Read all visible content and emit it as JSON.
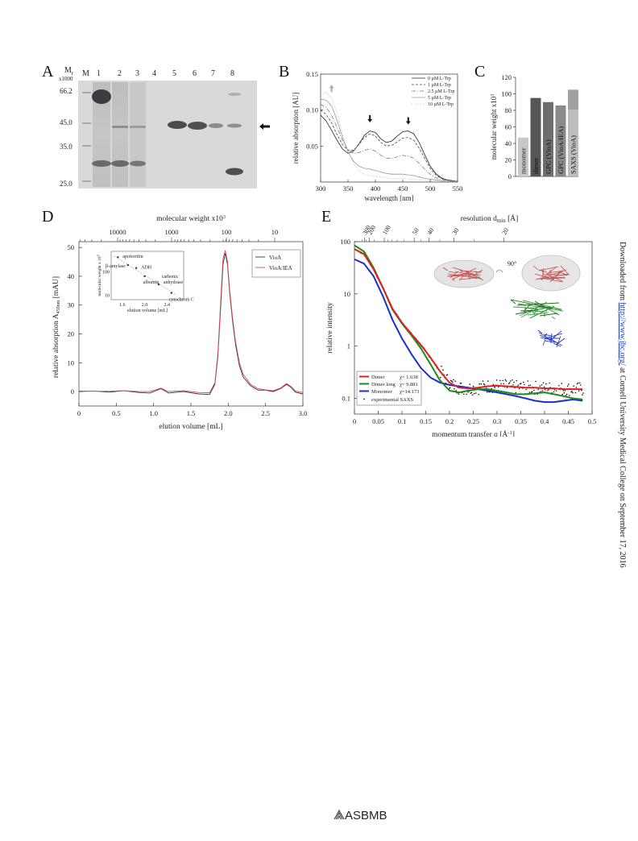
{
  "panels": {
    "A": {
      "letter": "A",
      "mr_label": "M",
      "mr_sub": "r",
      "mr_unit": "x1000",
      "lanes": [
        "M",
        "1",
        "2",
        "3",
        "4",
        "5",
        "6",
        "7",
        "8"
      ],
      "markers": [
        "66.2",
        "45.0",
        "35.0",
        "25.0"
      ]
    },
    "B": {
      "letter": "B",
      "chart_data": {
        "type": "line",
        "xlabel": "wavelength [nm]",
        "ylabel": "relative absorption [AU]",
        "xlim": [
          300,
          550
        ],
        "ylim": [
          0,
          0.15
        ],
        "xticks": [
          "300",
          "350",
          "400",
          "450",
          "500",
          "550"
        ],
        "yticks": [
          "0.05",
          "0.10",
          "0.15"
        ],
        "series": [
          {
            "name": "0 µM L-Trp",
            "color": "#222222",
            "x": [
              300,
              310,
              320,
              330,
              340,
              350,
              360,
              370,
              380,
              390,
              400,
              410,
              420,
              430,
              440,
              450,
              460,
              470,
              480,
              490,
              500,
              510,
              520,
              530,
              540,
              550
            ],
            "y": [
              0.093,
              0.085,
              0.072,
              0.058,
              0.046,
              0.04,
              0.043,
              0.053,
              0.065,
              0.071,
              0.069,
              0.06,
              0.055,
              0.057,
              0.064,
              0.07,
              0.071,
              0.067,
              0.055,
              0.038,
              0.022,
              0.012,
              0.006,
              0.003,
              0.002,
              0.001
            ]
          },
          {
            "name": "1 µM L-Trp",
            "color": "#444444",
            "x": [
              300,
              310,
              320,
              330,
              340,
              350,
              360,
              370,
              380,
              390,
              400,
              410,
              420,
              430,
              440,
              450,
              460,
              470,
              480,
              490,
              500,
              510,
              520,
              530,
              540,
              550
            ],
            "y": [
              0.1,
              0.094,
              0.082,
              0.066,
              0.052,
              0.044,
              0.044,
              0.052,
              0.062,
              0.067,
              0.064,
              0.055,
              0.05,
              0.051,
              0.056,
              0.061,
              0.062,
              0.058,
              0.047,
              0.033,
              0.019,
              0.01,
              0.005,
              0.003,
              0.002,
              0.001
            ]
          },
          {
            "name": "2.5 µM L-Trp",
            "color": "#777777",
            "x": [
              300,
              310,
              320,
              330,
              340,
              350,
              360,
              370,
              380,
              390,
              400,
              410,
              420,
              430,
              440,
              450,
              460,
              470,
              480,
              490,
              500,
              510,
              520,
              530,
              540,
              550
            ],
            "y": [
              0.108,
              0.104,
              0.093,
              0.076,
              0.058,
              0.045,
              0.04,
              0.041,
              0.044,
              0.046,
              0.043,
              0.037,
              0.033,
              0.033,
              0.035,
              0.037,
              0.036,
              0.033,
              0.026,
              0.018,
              0.011,
              0.006,
              0.004,
              0.002,
              0.001,
              0.001
            ]
          },
          {
            "name": "5 µM L-Trp",
            "color": "#999999",
            "x": [
              300,
              310,
              320,
              330,
              340,
              350,
              360,
              370,
              380,
              390,
              400,
              410,
              420,
              430,
              440,
              450,
              460,
              470,
              480,
              490,
              500,
              510,
              520,
              530,
              540,
              550
            ],
            "y": [
              0.115,
              0.114,
              0.106,
              0.086,
              0.062,
              0.042,
              0.029,
              0.022,
              0.019,
              0.018,
              0.016,
              0.014,
              0.012,
              0.011,
              0.011,
              0.011,
              0.01,
              0.009,
              0.007,
              0.005,
              0.004,
              0.003,
              0.002,
              0.001,
              0.001,
              0.001
            ]
          },
          {
            "name": "10 µM L-Trp",
            "color": "#bbbbbb",
            "x": [
              300,
              310,
              320,
              330,
              340,
              350,
              360,
              370,
              380,
              390,
              400,
              410,
              420,
              430,
              440,
              450,
              460,
              470,
              480,
              490,
              500,
              510,
              520,
              530,
              540,
              550
            ],
            "y": [
              0.122,
              0.124,
              0.117,
              0.095,
              0.067,
              0.043,
              0.026,
              0.016,
              0.011,
              0.009,
              0.008,
              0.007,
              0.006,
              0.005,
              0.005,
              0.005,
              0.004,
              0.004,
              0.003,
              0.003,
              0.002,
              0.002,
              0.001,
              0.001,
              0.001,
              0.001
            ]
          }
        ]
      }
    },
    "C": {
      "letter": "C",
      "chart_data": {
        "type": "bar",
        "ylabel": "molecular weight x10",
        "ylabel_sup": "3",
        "ylim": [
          0,
          120
        ],
        "yticks": [
          "0",
          "20",
          "40",
          "60",
          "80",
          "100",
          "120"
        ],
        "categories": [
          "monomer",
          "dimer",
          "GPC (VioA)",
          "GPC (VioA/IEA)",
          "SAXS (VioA)"
        ],
        "values": [
          47,
          95,
          90,
          86,
          105
        ],
        "saxs_inner_value": 81,
        "colors": [
          "#c8c8c8",
          "#555555",
          "#6e6e6e",
          "#8a8a8a",
          "#a0a0a0"
        ]
      }
    },
    "D": {
      "letter": "D",
      "chart_data": {
        "type": "line",
        "title_top": "molecular weight x10",
        "title_top_sup": "3",
        "xlabel": "elution volume [mL]",
        "ylabel": "relative absorption A",
        "ylabel_sub": "450nm",
        "ylabel_unit": " [mAU]",
        "xlim": [
          0,
          3.0
        ],
        "ylim": [
          -5,
          52
        ],
        "xticks": [
          "0",
          "0.5",
          "1.0",
          "1.5",
          "2.0",
          "2.5",
          "3.0"
        ],
        "yticks": [
          "0",
          "10",
          "20",
          "30",
          "40",
          "50"
        ],
        "top_ticks": [
          "10000",
          "1000",
          "100",
          "10"
        ],
        "series": [
          {
            "name": "VioA",
            "color": "#333333",
            "x": [
              0,
              0.2,
              0.4,
              0.6,
              0.8,
              0.95,
              1.1,
              1.2,
              1.4,
              1.6,
              1.75,
              1.82,
              1.86,
              1.9,
              1.93,
              1.96,
              1.99,
              2.02,
              2.06,
              2.1,
              2.15,
              2.2,
              2.3,
              2.4,
              2.5,
              2.6,
              2.7,
              2.78,
              2.84,
              2.9,
              3.0
            ],
            "y": [
              0,
              0.2,
              -0.2,
              0.3,
              -0.3,
              -0.5,
              1.0,
              -0.5,
              0.0,
              -0.8,
              -1.0,
              2.5,
              12,
              30,
              44,
              48,
              44,
              34,
              24,
              16,
              9,
              5,
              2,
              0.5,
              0.5,
              0,
              1.0,
              2.5,
              1.5,
              -0.2,
              -0.8
            ]
          },
          {
            "name": "VioA/IEA",
            "color": "#d05050",
            "x": [
              0,
              0.2,
              0.4,
              0.6,
              0.8,
              0.95,
              1.1,
              1.2,
              1.4,
              1.6,
              1.75,
              1.82,
              1.86,
              1.9,
              1.93,
              1.96,
              1.99,
              2.02,
              2.06,
              2.1,
              2.15,
              2.2,
              2.3,
              2.4,
              2.5,
              2.6,
              2.7,
              2.78,
              2.84,
              2.9,
              3.0
            ],
            "y": [
              0.2,
              0.1,
              0.1,
              0.3,
              0.0,
              0.0,
              1.2,
              0.0,
              0.3,
              -0.3,
              -0.4,
              3.0,
              13,
              32,
              46,
              49,
              45,
              35,
              25,
              17,
              10,
              6,
              2.5,
              1.0,
              0.6,
              0.3,
              1.2,
              2.8,
              1.8,
              0.2,
              -0.3
            ]
          }
        ],
        "inset": {
          "xlabel": "elution volume [mL]",
          "ylabel": "molecular weight x 10",
          "ylabel_sup": "3",
          "xticks": [
            "1.6",
            "2.0",
            "2.4"
          ],
          "yticks": [
            "100",
            "10"
          ],
          "points": [
            {
              "label": "apoferritin",
              "x": 1.52,
              "y": 443
            },
            {
              "label": "β-amylase",
              "x": 1.7,
              "y": 200
            },
            {
              "label": "ADH",
              "x": 1.85,
              "y": 150
            },
            {
              "label": "albumin",
              "x": 2.0,
              "y": 66
            },
            {
              "label": "carbonic anhydrase",
              "x": 2.25,
              "y": 29
            },
            {
              "label": "cytochrom C",
              "x": 2.48,
              "y": 12.4
            }
          ]
        }
      }
    },
    "E": {
      "letter": "E",
      "chart_data": {
        "type": "line",
        "title_top": "resolution d",
        "title_top_sub": "min",
        "title_top_unit": " [Å]",
        "xlabel": "momentum transfer q [Å",
        "xlabel_sup": "-1",
        "xlabel_end": "]",
        "ylabel": "relative intensity",
        "xlim": [
          0,
          0.5
        ],
        "yscale": "log",
        "ylim": [
          0.05,
          100
        ],
        "xticks": [
          "0",
          "0.05",
          "0.1",
          "0.15",
          "0.2",
          "0.25",
          "0.3",
          "0.35",
          "0.4",
          "0.45",
          "0.5"
        ],
        "yticks": [
          "0.1",
          "1",
          "10",
          "100"
        ],
        "top_ticks": [
          "300",
          "200",
          "100",
          "50",
          "40",
          "30",
          "20"
        ],
        "rotation_label": "90°",
        "series": [
          {
            "name": "Dimer",
            "chi": "χ= 1.638",
            "color": "#e02020",
            "x": [
              0,
              0.02,
              0.04,
              0.06,
              0.08,
              0.1,
              0.12,
              0.14,
              0.16,
              0.18,
              0.2,
              0.22,
              0.24,
              0.26,
              0.28,
              0.3,
              0.32,
              0.34,
              0.36,
              0.38,
              0.4,
              0.42,
              0.44,
              0.46,
              0.48
            ],
            "y": [
              72,
              58,
              30,
              13,
              5.2,
              2.8,
              1.7,
              1.05,
              0.6,
              0.33,
              0.2,
              0.16,
              0.155,
              0.16,
              0.17,
              0.175,
              0.17,
              0.165,
              0.16,
              0.16,
              0.155,
              0.155,
              0.15,
              0.15,
              0.15
            ]
          },
          {
            "name": "Dimer long",
            "chi": "χ= 9.881",
            "color": "#1a8c1a",
            "x": [
              0,
              0.02,
              0.04,
              0.06,
              0.08,
              0.1,
              0.12,
              0.14,
              0.16,
              0.18,
              0.2,
              0.22,
              0.24,
              0.26,
              0.28,
              0.3,
              0.32,
              0.34,
              0.36,
              0.38,
              0.4,
              0.42,
              0.44,
              0.46,
              0.48
            ],
            "y": [
              85,
              65,
              32,
              13,
              5,
              2.7,
              1.6,
              0.9,
              0.45,
              0.22,
              0.14,
              0.13,
              0.14,
              0.15,
              0.15,
              0.14,
              0.13,
              0.12,
              0.12,
              0.125,
              0.13,
              0.12,
              0.11,
              0.1,
              0.095
            ]
          },
          {
            "name": "Monomer",
            "chi": "χ=14.173",
            "color": "#1a2ed0",
            "x": [
              0,
              0.02,
              0.04,
              0.06,
              0.08,
              0.1,
              0.12,
              0.14,
              0.16,
              0.18,
              0.2,
              0.22,
              0.24,
              0.26,
              0.28,
              0.3,
              0.32,
              0.34,
              0.36,
              0.38,
              0.4,
              0.42,
              0.44,
              0.46,
              0.48
            ],
            "y": [
              46,
              38,
              22,
              9,
              3.2,
              1.4,
              0.7,
              0.38,
              0.25,
              0.2,
              0.18,
              0.17,
              0.16,
              0.15,
              0.14,
              0.13,
              0.12,
              0.11,
              0.1,
              0.09,
              0.085,
              0.085,
              0.09,
              0.095,
              0.09
            ]
          }
        ],
        "experimental_label": "experimental SAXS"
      }
    }
  },
  "side_note": {
    "prefix": "Downloaded from ",
    "link": "http://www.jbc.org/",
    "suffix": " at Cornell University Medical College on September 17, 2016"
  },
  "footer": {
    "logo_text": "ASBMB"
  }
}
